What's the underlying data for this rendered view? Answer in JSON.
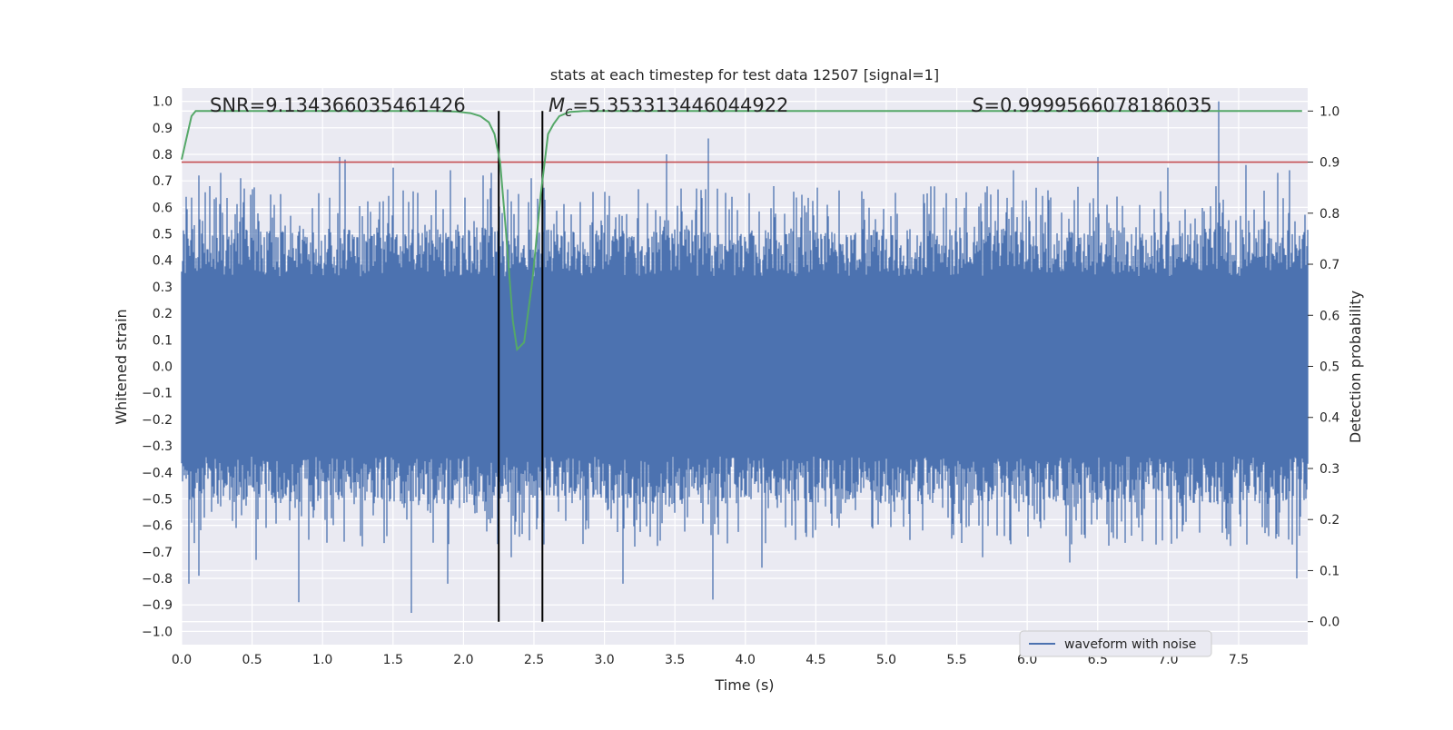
{
  "chart_data": {
    "type": "line",
    "title": "stats at each timestep for test data 12507 [signal=1]",
    "xlabel": "Time (s)",
    "ylabel": "Whitened strain",
    "y2label": "Detection probability",
    "xlim": [
      0.0,
      7.99
    ],
    "ylim": [
      -1.05,
      1.05
    ],
    "y2lim": [
      -0.045,
      1.045
    ],
    "xticks": [
      "0.0",
      "0.5",
      "1.0",
      "1.5",
      "2.0",
      "2.5",
      "3.0",
      "3.5",
      "4.0",
      "4.5",
      "5.0",
      "5.5",
      "6.0",
      "6.5",
      "7.0",
      "7.5"
    ],
    "xtick_values": [
      0,
      0.5,
      1,
      1.5,
      2,
      2.5,
      3,
      3.5,
      4,
      4.5,
      5,
      5.5,
      6,
      6.5,
      7,
      7.5
    ],
    "yticks": [
      "1.0",
      "0.9",
      "0.8",
      "0.7",
      "0.6",
      "0.5",
      "0.4",
      "0.3",
      "0.2",
      "0.1",
      "0.0",
      "−0.1",
      "−0.2",
      "−0.3",
      "−0.4",
      "−0.5",
      "−0.6",
      "−0.7",
      "−0.8",
      "−0.9",
      "−1.0"
    ],
    "ytick_values": [
      1.0,
      0.9,
      0.8,
      0.7,
      0.6,
      0.5,
      0.4,
      0.3,
      0.2,
      0.1,
      0.0,
      -0.1,
      -0.2,
      -0.3,
      -0.4,
      -0.5,
      -0.6,
      -0.7,
      -0.8,
      -0.9,
      -1.0
    ],
    "y2ticks": [
      "1.0",
      "0.9",
      "0.8",
      "0.7",
      "0.6",
      "0.5",
      "0.4",
      "0.3",
      "0.2",
      "0.1",
      "0.0"
    ],
    "y2tick_values": [
      1.0,
      0.9,
      0.8,
      0.7,
      0.6,
      0.5,
      0.4,
      0.3,
      0.2,
      0.1,
      0.0
    ],
    "annotations": {
      "snr": "SNR=9.134366035461426",
      "mc_symbol": "M",
      "mc_sub": "c",
      "mc_value": "=5.353313446044922",
      "s_symbol": "S",
      "s_value": "=0.9999566078186035"
    },
    "series": [
      {
        "name": "waveform with noise",
        "color": "#4c72b0",
        "envelope_core": [
          -0.16,
          0.16
        ],
        "peaks": [
          {
            "x": 0.03,
            "y": 0.64
          },
          {
            "x": 0.12,
            "y": 0.72
          },
          {
            "x": 0.2,
            "y": 0.68
          },
          {
            "x": 0.28,
            "y": 0.73
          },
          {
            "x": 0.42,
            "y": 0.71
          },
          {
            "x": 0.7,
            "y": 0.65
          },
          {
            "x": 1.12,
            "y": 0.79
          },
          {
            "x": 1.16,
            "y": 0.78
          },
          {
            "x": 1.5,
            "y": 0.75
          },
          {
            "x": 1.64,
            "y": 0.66
          },
          {
            "x": 1.91,
            "y": 0.74
          },
          {
            "x": 2.14,
            "y": 0.72
          },
          {
            "x": 2.2,
            "y": 0.73
          },
          {
            "x": 2.48,
            "y": 0.71
          },
          {
            "x": 3.44,
            "y": 0.8
          },
          {
            "x": 3.74,
            "y": 0.86
          },
          {
            "x": 4.2,
            "y": 0.68
          },
          {
            "x": 5.9,
            "y": 0.74
          },
          {
            "x": 6.5,
            "y": 0.79
          },
          {
            "x": 7.0,
            "y": 0.75
          },
          {
            "x": 7.36,
            "y": 1.0
          },
          {
            "x": 7.55,
            "y": 0.76
          },
          {
            "x": 7.78,
            "y": 0.73
          },
          {
            "x": 7.86,
            "y": 0.74
          },
          {
            "x": 0.05,
            "y": -0.82
          },
          {
            "x": 0.12,
            "y": -0.79
          },
          {
            "x": 0.53,
            "y": -0.73
          },
          {
            "x": 0.83,
            "y": -0.89
          },
          {
            "x": 1.63,
            "y": -0.93
          },
          {
            "x": 1.89,
            "y": -0.82
          },
          {
            "x": 2.34,
            "y": -0.72
          },
          {
            "x": 3.13,
            "y": -0.82
          },
          {
            "x": 3.77,
            "y": -0.88
          },
          {
            "x": 4.12,
            "y": -0.76
          },
          {
            "x": 5.68,
            "y": -0.72
          },
          {
            "x": 6.3,
            "y": -0.74
          },
          {
            "x": 7.91,
            "y": -0.8
          }
        ]
      },
      {
        "name": "detection probability",
        "axis": "right",
        "color": "#55a868",
        "x": [
          0.0,
          0.07,
          0.1,
          0.2,
          0.5,
          1.0,
          1.5,
          1.8,
          1.95,
          2.05,
          2.12,
          2.18,
          2.22,
          2.26,
          2.3,
          2.35,
          2.38,
          2.43,
          2.49,
          2.55,
          2.6,
          2.64,
          2.68,
          2.75,
          2.85,
          3.0,
          4.0,
          5.0,
          6.0,
          7.0,
          7.95
        ],
        "y": [
          0.905,
          0.99,
          1.0,
          1.0,
          1.0,
          1.0,
          1.0,
          1.0,
          0.999,
          0.996,
          0.99,
          0.978,
          0.955,
          0.9,
          0.77,
          0.59,
          0.533,
          0.547,
          0.67,
          0.84,
          0.955,
          0.975,
          0.99,
          0.998,
          1.0,
          1.0,
          1.0,
          1.0,
          1.0,
          1.0,
          1.0
        ]
      }
    ],
    "threshold": {
      "value": 0.9,
      "axis": "right",
      "color": "#c44e52"
    },
    "vlines": [
      2.25,
      2.56
    ],
    "legend": {
      "position": "bottom-right",
      "entries": [
        "waveform with noise"
      ]
    }
  }
}
